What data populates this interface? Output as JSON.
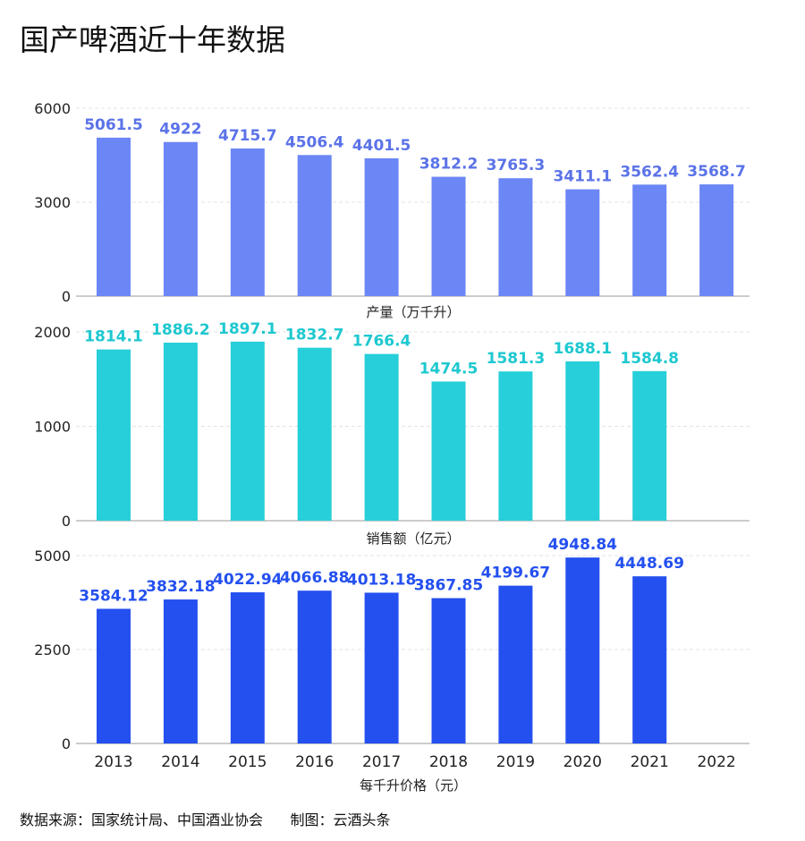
{
  "title": "国产啤酒近十年数据",
  "source_note": "数据来源：国家统计局、中国酒业协会",
  "credit": "制图：云酒头条",
  "chart_data": [
    {
      "type": "bar",
      "title": "产量（万千升）",
      "xlabel": "产量（万千升）",
      "ylabel": "",
      "categories": [
        "2013",
        "2014",
        "2015",
        "2016",
        "2017",
        "2018",
        "2019",
        "2020",
        "2021",
        "2022"
      ],
      "values": [
        5061.5,
        4922,
        4715.7,
        4506.4,
        4401.5,
        3812.2,
        3765.3,
        3411.1,
        3562.4,
        3568.7
      ],
      "labels": [
        "5061.5",
        "4922",
        "4715.7",
        "4506.4",
        "4401.5",
        "3812.2",
        "3765.3",
        "3411.1",
        "3562.4",
        "3568.7"
      ],
      "ylim": [
        0,
        6000
      ],
      "yticks": [
        "0",
        "3000",
        "6000"
      ],
      "color": "#6b86f5",
      "label_color": "#5b73e8"
    },
    {
      "type": "bar",
      "title": "销售额（亿元）",
      "xlabel": "销售额（亿元）",
      "ylabel": "",
      "categories": [
        "2013",
        "2014",
        "2015",
        "2016",
        "2017",
        "2018",
        "2019",
        "2020",
        "2021",
        "2022"
      ],
      "values": [
        1814.1,
        1886.2,
        1897.1,
        1832.7,
        1766.4,
        1474.5,
        1581.3,
        1688.1,
        1584.8,
        null
      ],
      "labels": [
        "1814.1",
        "1886.2",
        "1897.1",
        "1832.7",
        "1766.4",
        "1474.5",
        "1581.3",
        "1688.1",
        "1584.8",
        ""
      ],
      "ylim": [
        0,
        2000
      ],
      "yticks": [
        "0",
        "1000",
        "2000"
      ],
      "color": "#26cfd9",
      "label_color": "#1ec8d0"
    },
    {
      "type": "bar",
      "title": "每千升价格（元）",
      "xlabel": "每千升价格（元）",
      "ylabel": "",
      "categories": [
        "2013",
        "2014",
        "2015",
        "2016",
        "2017",
        "2018",
        "2019",
        "2020",
        "2021",
        "2022"
      ],
      "values": [
        3584.12,
        3832.18,
        4022.94,
        4066.88,
        4013.18,
        3867.85,
        4199.67,
        4948.84,
        4448.69,
        null
      ],
      "labels": [
        "3584.12",
        "3832.18",
        "4022.94",
        "4066.88",
        "4013.18",
        "3867.85",
        "4199.67",
        "4948.84",
        "4448.69",
        ""
      ],
      "ylim": [
        0,
        5000
      ],
      "yticks": [
        "0",
        "2500",
        "5000"
      ],
      "color": "#2450ef",
      "label_color": "#2450ef"
    }
  ]
}
